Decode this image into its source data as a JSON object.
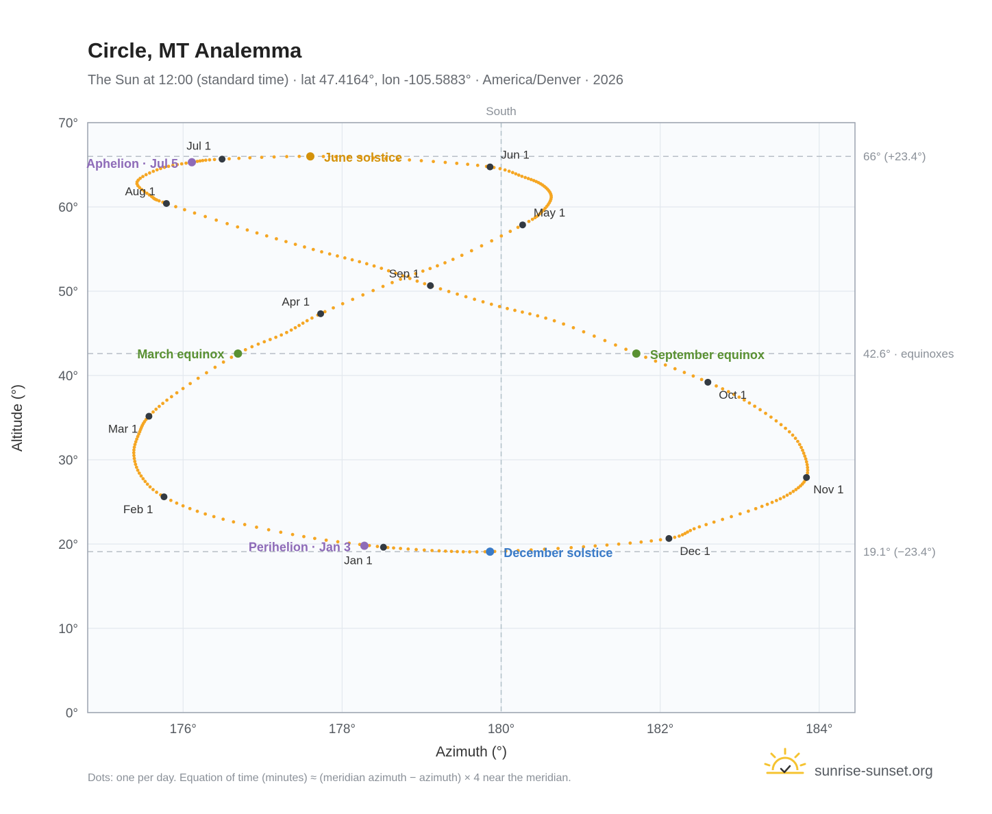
{
  "chart_data": {
    "type": "scatter",
    "title": "Circle, MT Analemma",
    "subtitle": "The Sun at 12:00 (standard time) · lat 47.4164°, lon -105.5883° · America/Denver · 2026",
    "xlabel": "Azimuth (°)",
    "ylabel": "Altitude (°)",
    "xlim": [
      174.8,
      184.45
    ],
    "ylim": [
      0,
      70
    ],
    "xticks": [
      176,
      178,
      180,
      182,
      184
    ],
    "yticks": [
      0,
      10,
      20,
      30,
      40,
      50,
      60,
      70
    ],
    "x_tick_suffix": "°",
    "y_tick_suffix": "°",
    "grid": true,
    "meridian": {
      "x": 180,
      "label": "South"
    },
    "reference_lines": [
      {
        "y": 66.0,
        "label": "66° (+23.4°)"
      },
      {
        "y": 42.6,
        "label": "42.6° · equinoxes"
      },
      {
        "y": 19.1,
        "label": "19.1° (−23.4°)"
      }
    ],
    "series": [
      {
        "color": "#f5a623",
        "anchors": [
          [
            178.52,
            19.62
          ],
          [
            177.55,
            20.83
          ],
          [
            176.44,
            23.11
          ],
          [
            175.76,
            25.6
          ],
          [
            175.47,
            28.1
          ],
          [
            175.38,
            30.77
          ],
          [
            175.45,
            33.22
          ],
          [
            175.57,
            35.16
          ],
          [
            175.93,
            38.0
          ],
          [
            176.69,
            42.6
          ],
          [
            177.28,
            45.0
          ],
          [
            177.73,
            47.33
          ],
          [
            178.65,
            51.1
          ],
          [
            179.39,
            53.76
          ],
          [
            180.27,
            57.87
          ],
          [
            180.52,
            59.5
          ],
          [
            180.63,
            61.2
          ],
          [
            180.52,
            62.6
          ],
          [
            180.27,
            63.6
          ],
          [
            179.86,
            64.75
          ],
          [
            178.8,
            65.6
          ],
          [
            177.6,
            66.0
          ],
          [
            176.49,
            65.67
          ],
          [
            176.11,
            65.3
          ],
          [
            175.7,
            64.5
          ],
          [
            175.42,
            62.93
          ],
          [
            175.6,
            61.27
          ],
          [
            175.79,
            60.41
          ],
          [
            176.74,
            57.46
          ],
          [
            177.66,
            54.89
          ],
          [
            178.4,
            53.0
          ],
          [
            179.11,
            50.66
          ],
          [
            179.93,
            48.31
          ],
          [
            180.7,
            46.39
          ],
          [
            181.7,
            42.6
          ],
          [
            182.6,
            39.2
          ],
          [
            183.16,
            36.52
          ],
          [
            183.64,
            33.18
          ],
          [
            183.82,
            30.4
          ],
          [
            183.84,
            27.9
          ],
          [
            183.65,
            26.1
          ],
          [
            183.25,
            24.36
          ],
          [
            182.48,
            22.0
          ],
          [
            182.11,
            20.66
          ],
          [
            181.08,
            19.7
          ],
          [
            179.86,
            19.1
          ],
          [
            179.2,
            19.2
          ],
          [
            178.52,
            19.62
          ]
        ]
      }
    ],
    "month_markers": [
      {
        "label": "Jan 1",
        "x": 178.52,
        "y": 19.62
      },
      {
        "label": "Feb 1",
        "x": 175.76,
        "y": 25.6
      },
      {
        "label": "Mar 1",
        "x": 175.57,
        "y": 35.16
      },
      {
        "label": "Apr 1",
        "x": 177.73,
        "y": 47.33
      },
      {
        "label": "May 1",
        "x": 180.27,
        "y": 57.87
      },
      {
        "label": "Jun 1",
        "x": 179.86,
        "y": 64.75
      },
      {
        "label": "Jul 1",
        "x": 176.49,
        "y": 65.67
      },
      {
        "label": "Aug 1",
        "x": 175.79,
        "y": 60.41
      },
      {
        "label": "Sep 1",
        "x": 179.11,
        "y": 50.66
      },
      {
        "label": "Oct 1",
        "x": 182.6,
        "y": 39.2
      },
      {
        "label": "Nov 1",
        "x": 183.84,
        "y": 27.9
      },
      {
        "label": "Dec 1",
        "x": 182.11,
        "y": 20.66
      }
    ],
    "events": [
      {
        "label": "March equinox",
        "x": 176.69,
        "y": 42.6,
        "color": "#5a9132"
      },
      {
        "label": "June solstice",
        "x": 177.6,
        "y": 66.0,
        "color": "#d4920a"
      },
      {
        "label": "September equinox",
        "x": 181.7,
        "y": 42.6,
        "color": "#5a9132"
      },
      {
        "label": "December solstice",
        "x": 179.86,
        "y": 19.1,
        "color": "#3a7bc8"
      },
      {
        "label": "Perihelion · Jan 3",
        "x": 178.28,
        "y": 19.8,
        "color": "#8e6bb8"
      },
      {
        "label": "Aphelion · Jul 5",
        "x": 176.11,
        "y": 65.3,
        "color": "#8e6bb8"
      }
    ],
    "footnote": "Dots: one per day. Equation of time (minutes) ≈ (meridian azimuth − azimuth) × 4 near the meridian.",
    "source": "sunrise-sunset.org"
  }
}
